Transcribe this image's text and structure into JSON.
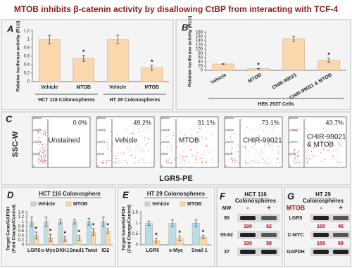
{
  "title": "MTOB inhibits β-catenin activity by disallowing CtBP from interacting with TCF-4",
  "chart_data": [
    {
      "type": "bar",
      "label": "A",
      "ylabel": "Relative luciferase activity (RLU)",
      "categories": [
        "Vehicle",
        "MTOB",
        "Vehicle",
        "MTOB"
      ],
      "group_labels": [
        "HCT 116 Colonospheres",
        "HT 29 Colonospheres"
      ],
      "values": [
        1.0,
        0.55,
        1.0,
        0.33
      ],
      "errors": [
        0.1,
        0.07,
        0.1,
        0.06
      ],
      "annotations": [
        null,
        "*",
        null,
        "*"
      ],
      "color": "#fad7ac",
      "ylim": [
        0,
        1.2
      ],
      "yticks": [
        0,
        0.2,
        0.4,
        0.6,
        0.8,
        1,
        1.2
      ]
    },
    {
      "type": "bar",
      "label": "B",
      "ylabel": "Relative luciferase activity (RLU)",
      "categories": [
        "Vehicle",
        "MTOB",
        "CHIR-99021",
        "CHIR-99021 & MTOB"
      ],
      "group_labels": [
        "HEK 293T Cells"
      ],
      "values": [
        30,
        8,
        150,
        48
      ],
      "errors": [
        2,
        1,
        12,
        10
      ],
      "annotations": [
        null,
        "*",
        null,
        "*"
      ],
      "color": "#fad7ac",
      "ylim": [
        0,
        180
      ],
      "yticks": [
        0,
        20,
        40,
        60,
        80,
        100,
        120,
        140,
        160,
        180
      ]
    },
    {
      "type": "bar",
      "label": "D",
      "title": "HCT 116 Colonosphere",
      "ylabel": [
        "Target Gene/GAPDH",
        "(Fold Change/Control)"
      ],
      "categories": [
        "LGR5",
        "c-Myc",
        "DKK1",
        "Snail1",
        "Twist",
        "ID2"
      ],
      "series": [
        {
          "name": "Vehicle",
          "color": "#b7dde8",
          "values": [
            1,
            1,
            1,
            1,
            1,
            1
          ],
          "errors": [
            0.2,
            0.2,
            0.1,
            0.1,
            0.15,
            0.2
          ],
          "annotations": [
            null,
            null,
            null,
            null,
            null,
            null
          ]
        },
        {
          "name": "MTOB",
          "color": "#fad7ac",
          "values": [
            0.4,
            0.3,
            0.25,
            0.3,
            0.55,
            0.6
          ],
          "errors": [
            0.15,
            0.15,
            0.1,
            0.1,
            0.15,
            0.1
          ],
          "annotations": [
            "*",
            "*",
            "*",
            "*",
            "*",
            "*"
          ]
        }
      ],
      "ylim": [
        0,
        1.4
      ],
      "yticks": [
        0,
        0.2,
        0.4,
        0.6,
        0.8,
        1,
        1.2,
        1.4
      ]
    },
    {
      "type": "bar",
      "label": "E",
      "title": "HT 29 Colonospheres",
      "ylabel": [
        "Target Gene/GAPDH",
        "(Fold Change/Control)"
      ],
      "categories": [
        "LGR5",
        "c-Myc",
        "Snail 1"
      ],
      "series": [
        {
          "name": "Vehicle",
          "color": "#b7dde8",
          "values": [
            1,
            1,
            1
          ],
          "errors": [
            0.1,
            0.15,
            0.15
          ],
          "annotations": [
            null,
            null,
            null
          ]
        },
        {
          "name": "MTOB",
          "color": "#fad7ac",
          "values": [
            0.2,
            0.3,
            0.35
          ],
          "errors": [
            0.1,
            0.1,
            0.08
          ],
          "annotations": [
            "*",
            "*",
            "*"
          ]
        }
      ],
      "ylim": [
        0,
        1.5
      ],
      "yticks": [
        0,
        0.5,
        1,
        1.5
      ]
    }
  ],
  "flow": {
    "label": "C",
    "ylabel": "SSC-W",
    "xlabel": "LGR5-PE",
    "yticks": [
      0,
      65536,
      131072,
      196608,
      262144
    ],
    "plots": [
      {
        "name": [
          "Unstained"
        ],
        "percent": "0.0%"
      },
      {
        "name": [
          "Vehicle"
        ],
        "percent": "49.2%"
      },
      {
        "name": [
          "MTOB"
        ],
        "percent": "31.1%"
      },
      {
        "name": [
          "CHIR-99021"
        ],
        "percent": "73.1%"
      },
      {
        "name": [
          "CHIR-99021",
          "& MTOB"
        ],
        "percent": "43.7%"
      }
    ]
  },
  "blot_f": {
    "label": "F",
    "title": [
      "HCT 116",
      "Colonospheres"
    ],
    "row_header": "MW",
    "lanes": [
      "-",
      "+"
    ],
    "rows": [
      {
        "name": "90",
        "values": [
          100,
          62
        ]
      },
      {
        "name": "55-62",
        "values": [
          100,
          58
        ]
      },
      {
        "name": "37"
      }
    ]
  },
  "blot_g": {
    "label": "G",
    "title": [
      "HT 29",
      "Colonospheres"
    ],
    "row_header": "MTOB",
    "lanes": [
      "-",
      "+"
    ],
    "rows": [
      {
        "name": "LGR5",
        "values": [
          100,
          45
        ]
      },
      {
        "name": "C-MYC",
        "values": [
          100,
          69
        ]
      },
      {
        "name": "GAPDH"
      }
    ]
  }
}
